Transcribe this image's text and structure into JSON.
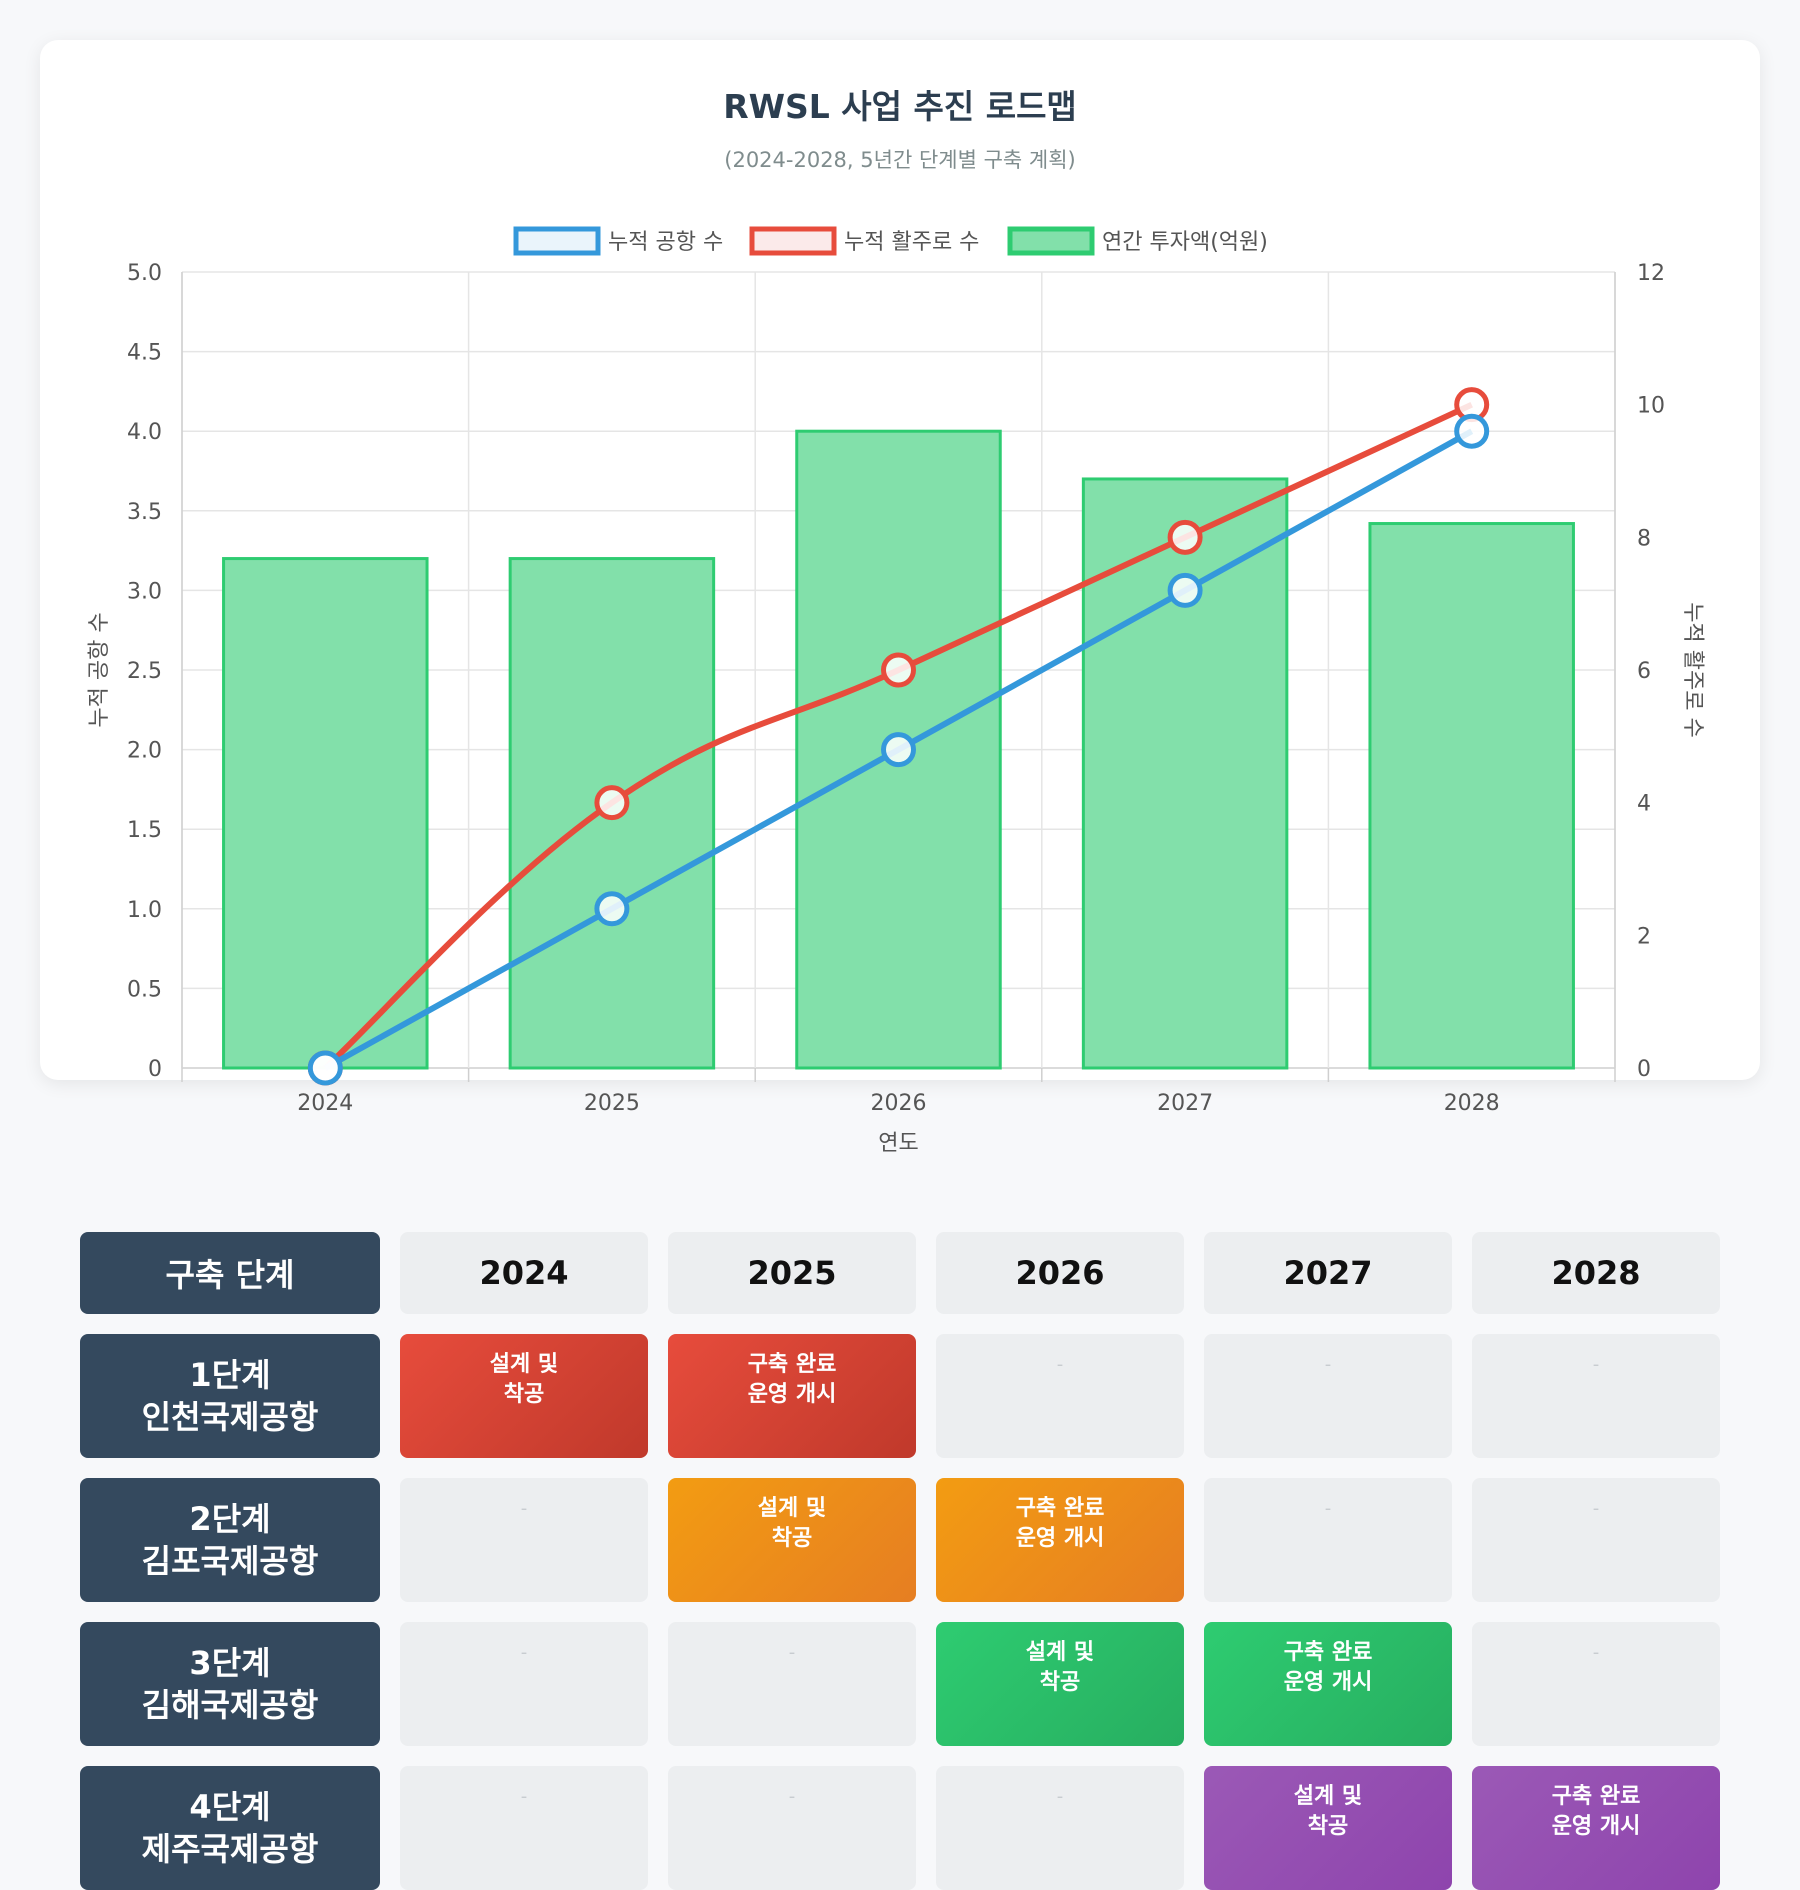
{
  "title": "RWSL 사업 추진 로드맵",
  "subtitle": "(2024-2028, 5년간 단계별 구축 계획)",
  "colors": {
    "airports_line": "#3498db",
    "runways_line": "#e74c3c",
    "investment_bar_fill": "#82e0aa",
    "investment_bar_border": "#2ecc71",
    "phase_header": "#34495e",
    "empty_cell": "#eceef0",
    "phase1": [
      "#e74c3c",
      "#c0392b"
    ],
    "phase2": [
      "#f39c12",
      "#e67e22"
    ],
    "phase3": [
      "#2ecc71",
      "#27ae60"
    ],
    "phase4": [
      "#9b59b6",
      "#8e44ad"
    ]
  },
  "chart_data": {
    "type": "bar",
    "categories": [
      "2024",
      "2025",
      "2026",
      "2027",
      "2028"
    ],
    "xlabel": "연도",
    "ylabel_left": "누적 공항 수",
    "ylabel_right": "누적 활주로 수",
    "ylim_left": [
      0,
      5
    ],
    "ylim_right": [
      0,
      12
    ],
    "yticks_left": [
      "0",
      "0.5",
      "1.0",
      "1.5",
      "2.0",
      "2.5",
      "3.0",
      "3.5",
      "4.0",
      "4.5",
      "5.0"
    ],
    "yticks_right": [
      "0",
      "2",
      "4",
      "6",
      "8",
      "10",
      "12"
    ],
    "grid": true,
    "legend_position": "top",
    "series": [
      {
        "name": "누적 공항 수",
        "type": "line",
        "axis": "left",
        "values": [
          0,
          1,
          2,
          3,
          4
        ]
      },
      {
        "name": "누적 활주로 수",
        "type": "line",
        "axis": "right",
        "values": [
          0,
          4,
          6,
          8,
          10
        ]
      },
      {
        "name": "연간 투자액(억원)",
        "type": "bar",
        "axis": "left",
        "values": [
          3.2,
          3.2,
          4.0,
          3.7,
          3.42
        ]
      }
    ]
  },
  "roadmap": {
    "header_label": "구축 단계",
    "years": [
      "2024",
      "2025",
      "2026",
      "2027",
      "2028"
    ],
    "phases": [
      {
        "line1": "1단계",
        "line2": "인천국제공항",
        "color_key": "phase1",
        "cells": [
          "설계 및\n착공",
          "구축 완료\n운영 개시",
          "-",
          "-",
          "-"
        ]
      },
      {
        "line1": "2단계",
        "line2": "김포국제공항",
        "color_key": "phase2",
        "cells": [
          "-",
          "설계 및\n착공",
          "구축 완료\n운영 개시",
          "-",
          "-"
        ]
      },
      {
        "line1": "3단계",
        "line2": "김해국제공항",
        "color_key": "phase3",
        "cells": [
          "-",
          "-",
          "설계 및\n착공",
          "구축 완료\n운영 개시",
          "-"
        ]
      },
      {
        "line1": "4단계",
        "line2": "제주국제공항",
        "color_key": "phase4",
        "cells": [
          "-",
          "-",
          "-",
          "설계 및\n착공",
          "구축 완료\n운영 개시"
        ]
      }
    ]
  }
}
